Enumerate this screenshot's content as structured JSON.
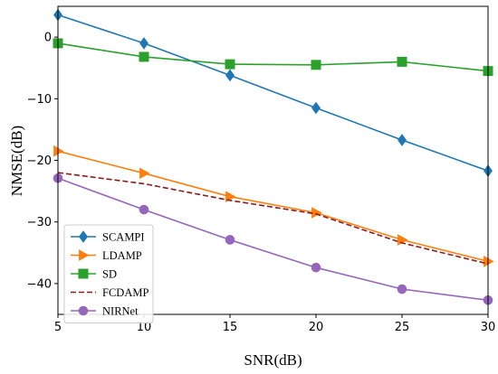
{
  "chart_data": {
    "type": "line",
    "title": "",
    "xlabel": "SNR(dB)",
    "ylabel": "NMSE(dB)",
    "xlim": [
      5,
      30
    ],
    "ylim": [
      -45,
      5
    ],
    "x_ticks": [
      5,
      10,
      15,
      20,
      25,
      30
    ],
    "y_ticks": [
      0,
      -10,
      -20,
      -30,
      -40
    ],
    "y_tick_labels": [
      "0",
      "−10",
      "−20",
      "−30",
      "−40"
    ],
    "grid": false,
    "legend_position": "lower-left",
    "x": [
      5,
      10,
      15,
      20,
      25,
      30
    ],
    "series": [
      {
        "name": "SCAMPI",
        "color": "#1f77b4",
        "marker": "diamond",
        "linestyle": "solid",
        "values": [
          3.6,
          -1.0,
          -6.2,
          -11.5,
          -16.7,
          -21.7
        ]
      },
      {
        "name": "LDAMP",
        "color": "#ff7f0e",
        "marker": "triangle-right",
        "linestyle": "solid",
        "values": [
          -18.5,
          -22.1,
          -25.9,
          -28.5,
          -32.9,
          -36.4
        ]
      },
      {
        "name": "SD",
        "color": "#2ca02c",
        "marker": "square",
        "linestyle": "solid",
        "values": [
          -1.0,
          -3.2,
          -4.4,
          -4.5,
          -4.0,
          -5.5
        ]
      },
      {
        "name": "FCDAMP",
        "color": "#8c1a1a",
        "marker": "none",
        "linestyle": "dashed",
        "values": [
          -22.0,
          -23.8,
          -26.5,
          -28.7,
          -33.4,
          -36.8
        ]
      },
      {
        "name": "NIRNet",
        "color": "#9467bd",
        "marker": "circle",
        "linestyle": "solid",
        "values": [
          -22.9,
          -28.0,
          -32.9,
          -37.4,
          -40.9,
          -42.7
        ]
      }
    ]
  }
}
